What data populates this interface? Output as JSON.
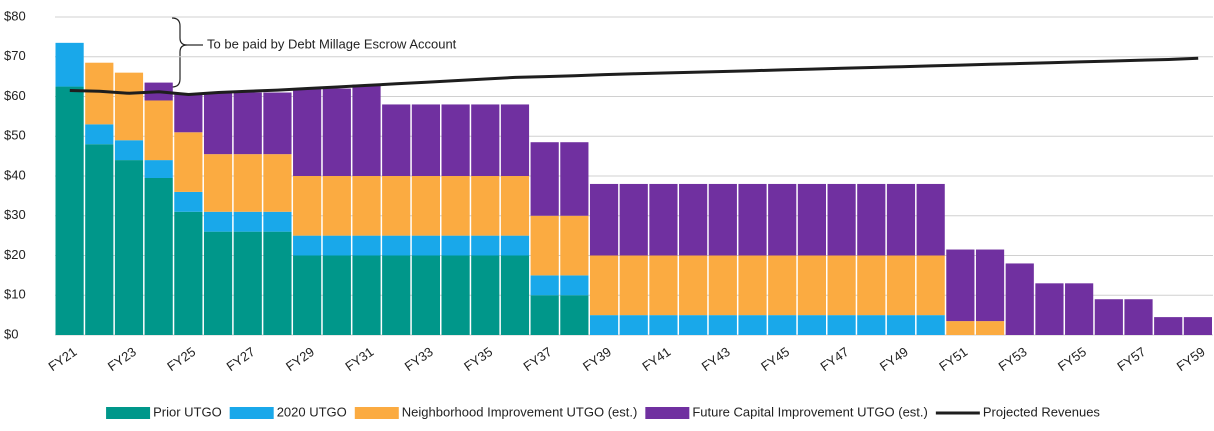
{
  "chart_data": {
    "type": "bar",
    "stacked": true,
    "annotation": "To be paid by Debt Millage Escrow Account",
    "categories": [
      "FY21",
      null,
      "FY23",
      null,
      "FY25",
      null,
      "FY27",
      null,
      "FY29",
      null,
      "FY31",
      null,
      "FY33",
      null,
      "FY35",
      null,
      "FY37",
      null,
      "FY39",
      null,
      "FY41",
      null,
      "FY43",
      null,
      "FY45",
      null,
      "FY47",
      null,
      "FY49",
      null,
      "FY51",
      null,
      "FY53",
      null,
      "FY55",
      null,
      "FY57",
      null,
      "FY59"
    ],
    "series": [
      {
        "name": "Prior UTGO",
        "color": "#00978a",
        "values": [
          62.5,
          48,
          44,
          39.5,
          31,
          26,
          26,
          26,
          20,
          20,
          20,
          20,
          20,
          20,
          20,
          20,
          10,
          10,
          0,
          0,
          0,
          0,
          0,
          0,
          0,
          0,
          0,
          0,
          0,
          0,
          0,
          0,
          0,
          0,
          0,
          0,
          0,
          0,
          0
        ]
      },
      {
        "name": "2020 UTGO",
        "color": "#19a8ea",
        "values": [
          11,
          5,
          5,
          4.5,
          5,
          5,
          5,
          5,
          5,
          5,
          5,
          5,
          5,
          5,
          5,
          5,
          5,
          5,
          5,
          5,
          5,
          5,
          5,
          5,
          5,
          5,
          5,
          5,
          5,
          5,
          0,
          0,
          0,
          0,
          0,
          0,
          0,
          0,
          0
        ]
      },
      {
        "name": "Neighborhood Improvement UTGO (est.)",
        "color": "#fbab41",
        "values": [
          0,
          15.5,
          17,
          15,
          15,
          14.5,
          14.5,
          14.5,
          15,
          15,
          15,
          15,
          15,
          15,
          15,
          15,
          15,
          15,
          15,
          15,
          15,
          15,
          15,
          15,
          15,
          15,
          15,
          15,
          15,
          15,
          3.5,
          3.5,
          0,
          0,
          0,
          0,
          0,
          0,
          0
        ]
      },
      {
        "name": "Future Capital Improvement UTGO (est.)",
        "color": "#7030a0",
        "values": [
          0,
          0,
          0,
          4.5,
          9.5,
          15.5,
          15.5,
          15.5,
          22,
          22,
          23,
          18,
          18,
          18,
          18,
          18,
          18.5,
          18.5,
          18,
          18,
          18,
          18,
          18,
          18,
          18,
          18,
          18,
          18,
          18,
          18,
          18,
          18,
          18,
          13,
          13,
          9,
          9,
          4.5,
          4.5
        ]
      },
      {
        "name": "Projected Revenues",
        "type": "line",
        "color": "#1e1e1e",
        "values": [
          61.5,
          61.3,
          60.8,
          61.2,
          60.5,
          61,
          61.3,
          61.6,
          62,
          62.4,
          62.8,
          63.2,
          63.6,
          64,
          64.4,
          64.8,
          65,
          65.2,
          65.5,
          65.7,
          65.9,
          66.1,
          66.3,
          66.5,
          66.7,
          66.9,
          67.1,
          67.3,
          67.5,
          67.7,
          67.9,
          68.1,
          68.3,
          68.5,
          68.7,
          68.9,
          69.1,
          69.3,
          69.6
        ]
      }
    ],
    "ylim": [
      0,
      80
    ],
    "yticks": [
      {
        "value": 0,
        "label": "$0"
      },
      {
        "value": 10,
        "label": "$10"
      },
      {
        "value": 20,
        "label": "$20"
      },
      {
        "value": 30,
        "label": "$30"
      },
      {
        "value": 40,
        "label": "$40"
      },
      {
        "value": 50,
        "label": "$50"
      },
      {
        "value": 60,
        "label": "$60"
      },
      {
        "value": 70,
        "label": "$70"
      },
      {
        "value": 80,
        "label": "$80"
      }
    ],
    "grid": true,
    "legend": "bottom"
  }
}
